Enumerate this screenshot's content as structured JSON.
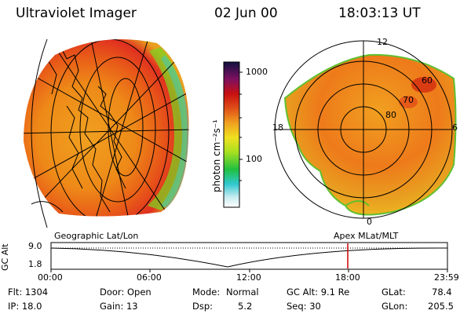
{
  "header": {
    "instrument": "Ultraviolet Imager",
    "date": "02 Jun 00",
    "time": "18:03:13 UT"
  },
  "colorbar": {
    "unit": "photon cm⁻²s⁻¹",
    "ticks": [
      "1000",
      "100"
    ],
    "scale": "log"
  },
  "panels": {
    "left_label": "Geographic Lat/Lon",
    "right_label": "Apex MLat/MLT"
  },
  "polar": {
    "mlt_labels": [
      "12",
      "18",
      "6",
      "0"
    ],
    "mlat_labels": [
      "60",
      "70",
      "80"
    ]
  },
  "altitude_plot": {
    "ylabel": "GC Alt",
    "y_ticks": [
      "9.0",
      "1.8"
    ],
    "x_ticks": [
      "00:00",
      "06:00",
      "12:00",
      "18:00",
      "23:59"
    ],
    "marker_color": "#cc0000"
  },
  "info": {
    "flt": "Flt: 1304",
    "ip": "IP: 18.0",
    "door": "Door: Open",
    "gain": "Gain: 13",
    "mode_label": "Mode:",
    "mode_value": "Normal",
    "dsp_label": "Dsp:",
    "dsp_value": "5.2",
    "gc_alt": "GC Alt: 9.1 Re",
    "seq": "Seq: 30",
    "glat_label": "GLat:",
    "glat_value": "78.4",
    "glon_label": "GLon:",
    "glon_value": "205.5"
  }
}
